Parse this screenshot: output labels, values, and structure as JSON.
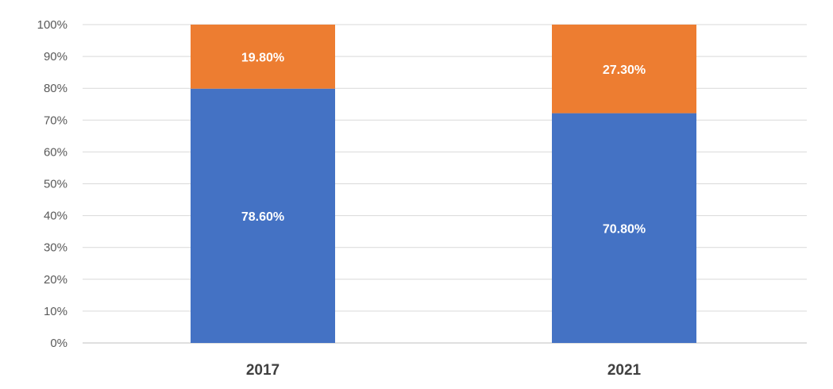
{
  "chart_data": {
    "type": "bar",
    "stacked": true,
    "categories": [
      "2017",
      "2021"
    ],
    "series": [
      {
        "values": [
          78.6,
          70.8
        ],
        "labels": [
          "78.60%",
          "70.80%"
        ],
        "color": "#4472C4"
      },
      {
        "values": [
          19.8,
          27.3
        ],
        "labels": [
          "19.80%",
          "27.30%"
        ],
        "color": "#ED7D31"
      }
    ],
    "ylim": [
      0,
      100
    ],
    "y_ticks": [
      "0%",
      "10%",
      "20%",
      "30%",
      "40%",
      "50%",
      "60%",
      "70%",
      "80%",
      "90%",
      "100%"
    ],
    "grid": true,
    "legend": "none",
    "note": "bars are rendered as filling 100% of the stacked height"
  }
}
